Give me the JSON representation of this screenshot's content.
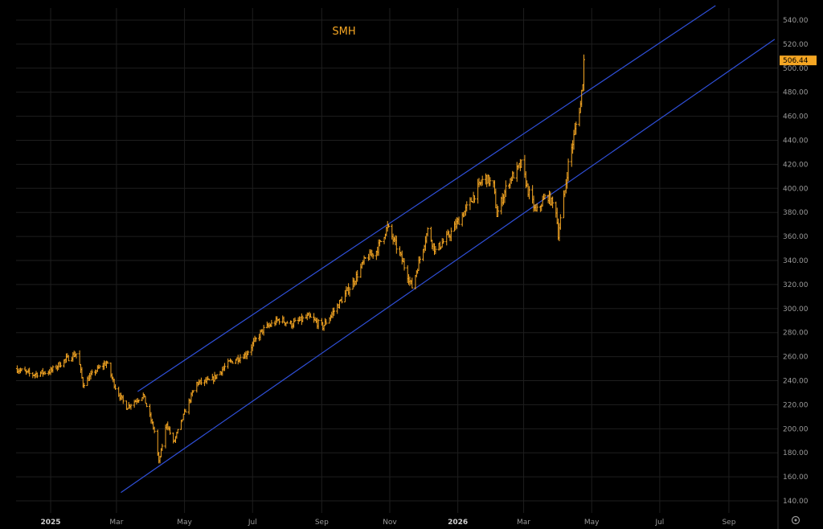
{
  "chart_data": {
    "type": "ohlc",
    "title": "SMH",
    "last_price_label": "506.44",
    "colors": {
      "background": "#000000",
      "bars": "#f5a623",
      "channel": "#2f4fd8",
      "grid": "#1e1e1e",
      "axis_text": "#9a9a9a",
      "badge": "#f5a623"
    },
    "ylim": [
      130,
      550
    ],
    "y_ticks": [
      140,
      160,
      180,
      200,
      220,
      240,
      260,
      280,
      300,
      320,
      340,
      360,
      380,
      400,
      420,
      440,
      460,
      480,
      500,
      520,
      540
    ],
    "y_tick_labels": [
      "140.00",
      "160.00",
      "180.00",
      "200.00",
      "220.00",
      "240.00",
      "260.00",
      "280.00",
      "300.00",
      "320.00",
      "340.00",
      "360.00",
      "380.00",
      "400.00",
      "420.00",
      "440.00",
      "460.00",
      "480.00",
      "500.00",
      "520.00",
      "540.00"
    ],
    "xlim": [
      "2024-12-01",
      "2026-10-15"
    ],
    "x_ticks": [
      {
        "date": "2025-01-01",
        "label": "2025",
        "bold": true
      },
      {
        "date": "2025-03-01",
        "label": "Mar",
        "bold": false
      },
      {
        "date": "2025-05-01",
        "label": "May",
        "bold": false
      },
      {
        "date": "2025-07-01",
        "label": "Jul",
        "bold": false
      },
      {
        "date": "2025-09-01",
        "label": "Sep",
        "bold": false
      },
      {
        "date": "2025-11-01",
        "label": "Nov",
        "bold": false
      },
      {
        "date": "2026-01-01",
        "label": "2026",
        "bold": true
      },
      {
        "date": "2026-03-01",
        "label": "Mar",
        "bold": false
      },
      {
        "date": "2026-05-01",
        "label": "May",
        "bold": false
      },
      {
        "date": "2026-07-01",
        "label": "Jul",
        "bold": false
      },
      {
        "date": "2026-09-01",
        "label": "Sep",
        "bold": false
      }
    ],
    "channel": {
      "upper": [
        {
          "date": "2025-03-20",
          "value": 231
        },
        {
          "date": "2026-08-20",
          "value": 552
        }
      ],
      "lower": [
        {
          "date": "2025-03-05",
          "value": 147
        },
        {
          "date": "2026-10-12",
          "value": 524
        }
      ]
    },
    "price_path": [
      {
        "date": "2024-12-01",
        "value": 250
      },
      {
        "date": "2024-12-15",
        "value": 245
      },
      {
        "date": "2025-01-01",
        "value": 248
      },
      {
        "date": "2025-01-15",
        "value": 258
      },
      {
        "date": "2025-01-25",
        "value": 263
      },
      {
        "date": "2025-01-30",
        "value": 237
      },
      {
        "date": "2025-02-10",
        "value": 248
      },
      {
        "date": "2025-02-20",
        "value": 255
      },
      {
        "date": "2025-03-01",
        "value": 232
      },
      {
        "date": "2025-03-10",
        "value": 218
      },
      {
        "date": "2025-03-25",
        "value": 228
      },
      {
        "date": "2025-04-04",
        "value": 198
      },
      {
        "date": "2025-04-08",
        "value": 172
      },
      {
        "date": "2025-04-15",
        "value": 205
      },
      {
        "date": "2025-04-21",
        "value": 188
      },
      {
        "date": "2025-05-03",
        "value": 218
      },
      {
        "date": "2025-05-12",
        "value": 238
      },
      {
        "date": "2025-05-25",
        "value": 240
      },
      {
        "date": "2025-06-10",
        "value": 255
      },
      {
        "date": "2025-06-25",
        "value": 262
      },
      {
        "date": "2025-07-10",
        "value": 282
      },
      {
        "date": "2025-07-25",
        "value": 291
      },
      {
        "date": "2025-08-05",
        "value": 287
      },
      {
        "date": "2025-08-20",
        "value": 293
      },
      {
        "date": "2025-09-02",
        "value": 285
      },
      {
        "date": "2025-09-15",
        "value": 302
      },
      {
        "date": "2025-09-30",
        "value": 323
      },
      {
        "date": "2025-10-10",
        "value": 341
      },
      {
        "date": "2025-10-20",
        "value": 348
      },
      {
        "date": "2025-10-30",
        "value": 368
      },
      {
        "date": "2025-11-10",
        "value": 345
      },
      {
        "date": "2025-11-21",
        "value": 318
      },
      {
        "date": "2025-12-05",
        "value": 365
      },
      {
        "date": "2025-12-12",
        "value": 348
      },
      {
        "date": "2025-12-25",
        "value": 362
      },
      {
        "date": "2026-01-10",
        "value": 385
      },
      {
        "date": "2026-01-25",
        "value": 410
      },
      {
        "date": "2026-02-02",
        "value": 402
      },
      {
        "date": "2026-02-05",
        "value": 378
      },
      {
        "date": "2026-02-15",
        "value": 405
      },
      {
        "date": "2026-02-27",
        "value": 420
      },
      {
        "date": "2026-03-05",
        "value": 398
      },
      {
        "date": "2026-03-12",
        "value": 380
      },
      {
        "date": "2026-03-22",
        "value": 395
      },
      {
        "date": "2026-03-30",
        "value": 382
      },
      {
        "date": "2026-04-01",
        "value": 362
      },
      {
        "date": "2026-04-07",
        "value": 398
      },
      {
        "date": "2026-04-10",
        "value": 420
      },
      {
        "date": "2026-04-14",
        "value": 438
      },
      {
        "date": "2026-04-18",
        "value": 458
      },
      {
        "date": "2026-04-21",
        "value": 470
      },
      {
        "date": "2026-04-23",
        "value": 490
      },
      {
        "date": "2026-04-24",
        "value": 506.44
      }
    ]
  }
}
